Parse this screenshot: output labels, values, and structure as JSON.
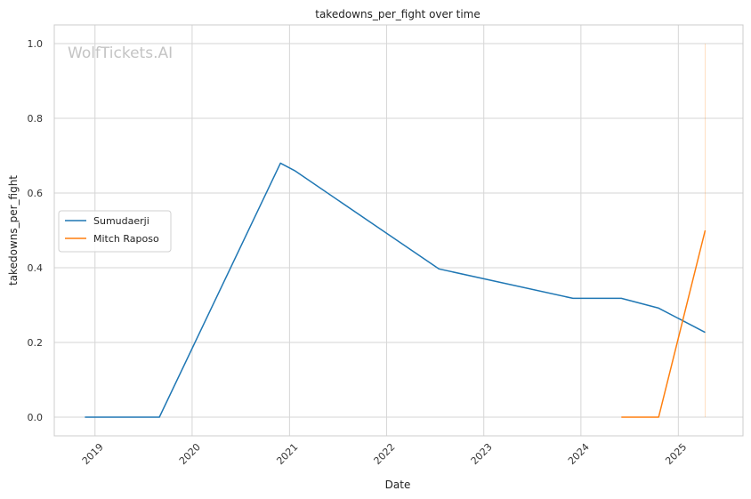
{
  "chart_data": {
    "type": "line",
    "title": "takedowns_per_fight over time",
    "xlabel": "Date",
    "ylabel": "takedowns_per_fight",
    "watermark": "WolfTickets.AI",
    "x_ticks": [
      "2019",
      "2020",
      "2021",
      "2022",
      "2023",
      "2024",
      "2025"
    ],
    "y_ticks": [
      "0.0",
      "0.2",
      "0.4",
      "0.6",
      "0.8",
      "1.0"
    ],
    "xlim": [
      "2018-08-01",
      "2025-09-01"
    ],
    "ylim": [
      -0.05,
      1.05
    ],
    "grid": true,
    "legend_position": "center-left",
    "series": [
      {
        "name": "Sumudaerji",
        "color": "#1f77b4",
        "points": [
          {
            "x": "2018-11-24",
            "y": 0.0
          },
          {
            "x": "2019-08-31",
            "y": 0.0
          },
          {
            "x": "2020-11-28",
            "y": 0.68
          },
          {
            "x": "2021-01-20",
            "y": 0.66
          },
          {
            "x": "2022-07-16",
            "y": 0.397
          },
          {
            "x": "2023-12-02",
            "y": 0.318
          },
          {
            "x": "2024-06-01",
            "y": 0.318
          },
          {
            "x": "2024-10-19",
            "y": 0.292
          },
          {
            "x": "2025-04-12",
            "y": 0.227
          }
        ]
      },
      {
        "name": "Mitch Raposo",
        "color": "#ff7f0e",
        "points": [
          {
            "x": "2024-06-01",
            "y": 0.0
          },
          {
            "x": "2024-10-19",
            "y": 0.0
          },
          {
            "x": "2025-04-12",
            "y": 0.5
          }
        ]
      }
    ]
  }
}
